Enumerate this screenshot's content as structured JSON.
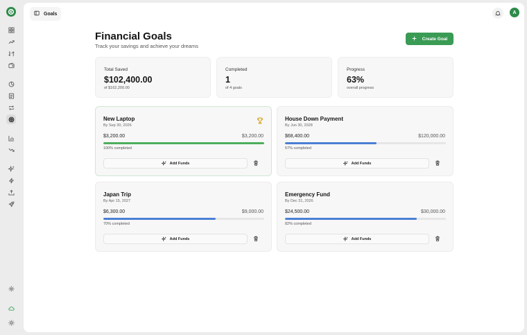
{
  "header": {
    "goals_label": "Goals",
    "avatar_initial": "A"
  },
  "page": {
    "title": "Financial Goals",
    "subtitle": "Track your savings and achieve your dreams",
    "create_label": "Create Goal"
  },
  "stats": [
    {
      "label": "Total Saved",
      "value": "$102,400.00",
      "sub": "of $162,200.00"
    },
    {
      "label": "Completed",
      "value": "1",
      "sub": "of 4 goals"
    },
    {
      "label": "Progress",
      "value": "63%",
      "sub": "overall progress"
    }
  ],
  "goals": [
    {
      "name": "New Laptop",
      "date": "By Sep 30, 2026",
      "saved": "$3,200.00",
      "target": "$3,200.00",
      "pct_text": "100% completed",
      "fraction": 1.0,
      "color": "#4cae5c",
      "completed": true,
      "add_label": "Add Funds"
    },
    {
      "name": "House Down Payment",
      "date": "By Jun 30, 2028",
      "saved": "$68,400.00",
      "target": "$120,000.00",
      "pct_text": "57% completed",
      "fraction": 0.57,
      "color": "#4a7fd4",
      "completed": false,
      "add_label": "Add Funds"
    },
    {
      "name": "Japan Trip",
      "date": "By Apr 15, 2027",
      "saved": "$6,300.00",
      "target": "$9,000.00",
      "pct_text": "70% completed",
      "fraction": 0.7,
      "color": "#4a7fd4",
      "completed": false,
      "add_label": "Add Funds"
    },
    {
      "name": "Emergency Fund",
      "date": "By Dec 31, 2026",
      "saved": "$24,500.00",
      "target": "$30,000.00",
      "pct_text": "82% completed",
      "fraction": 0.82,
      "color": "#4a7fd4",
      "completed": false,
      "add_label": "Add Funds"
    }
  ],
  "colors": {
    "brand": "#2e8b4a",
    "accent_button": "#3a9b55",
    "completed_bar": "#4cae5c",
    "progress_bar": "#4a7fd4",
    "trophy": "#d4a017"
  },
  "icons": {
    "sidebar": [
      "dashboard-icon",
      "trending-up-icon",
      "transfer-icon",
      "wallet-icon",
      "pie-chart-icon",
      "receipt-icon",
      "repeat-icon",
      "target-icon",
      "bar-chart-icon",
      "trending-down-icon",
      "sparkle-icon",
      "zap-icon",
      "upload-icon",
      "rocket-icon",
      "settings-icon",
      "cloud-icon",
      "sun-icon"
    ]
  }
}
